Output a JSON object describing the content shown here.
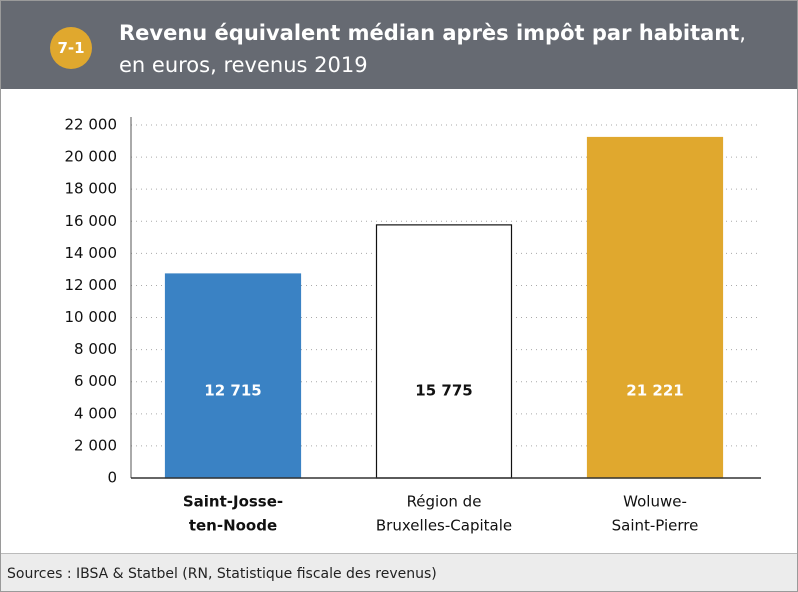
{
  "chart_data": {
    "type": "bar",
    "badge": "7-1",
    "title": "Revenu équivalent médian après impôt par habitant",
    "subtitle": ", en euros, revenus 2019",
    "categories": [
      [
        "Saint-Josse-",
        "ten-Noode"
      ],
      [
        "Région de",
        "Bruxelles-Capitale"
      ],
      [
        "Woluwe-",
        "Saint-Pierre"
      ]
    ],
    "values": [
      12715,
      15775,
      21221
    ],
    "value_labels": [
      "12 715",
      "15 775",
      "21 221"
    ],
    "colors": [
      "#3a82c4",
      "#ffffff",
      "#e0a82e"
    ],
    "edge_colors": [
      "#3a82c4",
      "#111111",
      "#e0a82e"
    ],
    "label_colors": [
      "#ffffff",
      "#111111",
      "#ffffff"
    ],
    "ylim": [
      0,
      22000
    ],
    "yticks": [
      0,
      {
        "value": 2000,
        "label": "2 000"
      },
      {
        "value": 4000,
        "label": "4 000"
      },
      {
        "value": 6000,
        "label": "6 000"
      },
      {
        "value": 8000,
        "label": "8 000"
      },
      {
        "value": 10000,
        "label": "10 000"
      },
      {
        "value": 12000,
        "label": "12 000"
      },
      {
        "value": 14000,
        "label": "14 000"
      },
      {
        "value": 16000,
        "label": "16 000"
      },
      {
        "value": 18000,
        "label": "18 000"
      },
      {
        "value": 20000,
        "label": "20 000"
      },
      {
        "value": 22000,
        "label": "22 000"
      }
    ],
    "grid": true,
    "source": "Sources : IBSA & Statbel (RN, Statistique fiscale des revenus)"
  }
}
